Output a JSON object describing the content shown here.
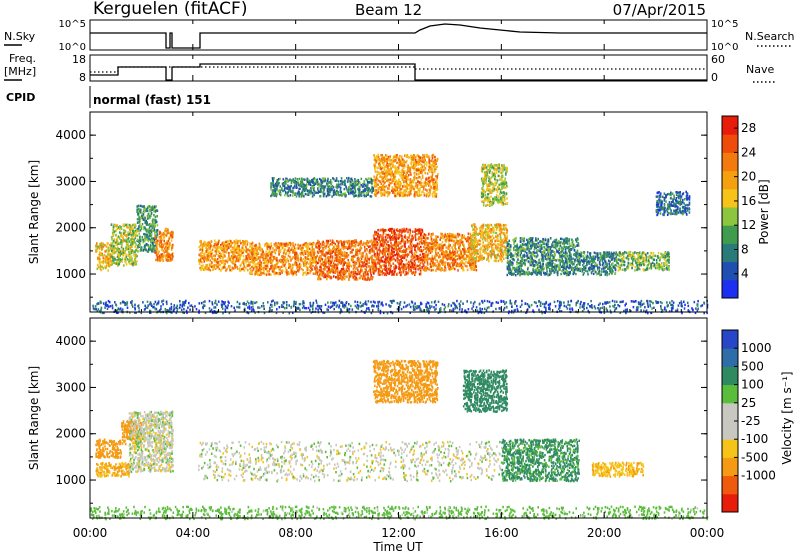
{
  "header": {
    "station": "Kerguelen (fitACF)",
    "beam": "Beam 12",
    "date": "07/Apr/2015"
  },
  "strips": {
    "nsky_label": "N.Sky",
    "nsearch_label": "N.Search",
    "freq_label_line1": "Freq.",
    "freq_label_line2": "[MHz]",
    "nave_label": "Nave",
    "cpid_label": "CPID",
    "cpid_value": "normal (fast) 151",
    "nsky_ticks": [
      "10^5",
      "10^0"
    ],
    "nsearch_ticks": [
      "10^5",
      "10^0"
    ],
    "freq_ticks": [
      "18",
      "8"
    ],
    "nave_ticks": [
      "60",
      "0"
    ]
  },
  "axes": {
    "ylabel": "Slant Range [km]",
    "xlabel": "Time UT",
    "y_ticks": [
      "1000",
      "2000",
      "3000",
      "4000"
    ],
    "x_ticks": [
      "00:00",
      "04:00",
      "08:00",
      "12:00",
      "16:00",
      "20:00",
      "00:00"
    ]
  },
  "power_colorbar": {
    "label": "Power [dB]",
    "ticks": [
      "4",
      "8",
      "12",
      "16",
      "20",
      "24",
      "28"
    ],
    "colors": [
      "#1d2ff0",
      "#1f4fb0",
      "#2a7a7a",
      "#3f9c4f",
      "#8cc63e",
      "#f6c318",
      "#f5a00f",
      "#f27a0e",
      "#ef4b0b",
      "#e81c0b"
    ]
  },
  "velocity_colorbar": {
    "label": "Velocity [m s⁻¹]",
    "ticks": [
      "1000",
      "500",
      "100",
      "25",
      "-25",
      "-100",
      "-500",
      "-1000"
    ],
    "colors": [
      "#2846c8",
      "#2e6ea8",
      "#2f8a62",
      "#5bbd3c",
      "#c8c8c0",
      "#c8c8c0",
      "#f6c318",
      "#f59a12",
      "#ef5a0c",
      "#e81c0b"
    ]
  },
  "chart_data": {
    "type": "heatmap",
    "x_range_hours": [
      0,
      24
    ],
    "y_range_km": [
      180,
      4500
    ],
    "series": [
      {
        "name": "Power",
        "scale_db": [
          0,
          30
        ],
        "blobs": [
          {
            "t": [
              0.2,
              0.8
            ],
            "r": [
              1100,
              1700
            ],
            "v": 18
          },
          {
            "t": [
              0.8,
              1.8
            ],
            "r": [
              1200,
              2100
            ],
            "v": 14
          },
          {
            "t": [
              1.8,
              2.6
            ],
            "r": [
              1500,
              2500
            ],
            "v": 10
          },
          {
            "t": [
              2.5,
              3.2
            ],
            "r": [
              1300,
              2000
            ],
            "v": 22
          },
          {
            "t": [
              4.2,
              6.2
            ],
            "r": [
              1100,
              1750
            ],
            "v": 20
          },
          {
            "t": [
              6.2,
              8.8
            ],
            "r": [
              1000,
              1700
            ],
            "v": 21
          },
          {
            "t": [
              8.8,
              11.0
            ],
            "r": [
              900,
              1750
            ],
            "v": 23
          },
          {
            "t": [
              11.0,
              13.0
            ],
            "r": [
              1000,
              2000
            ],
            "v": 25
          },
          {
            "t": [
              13.0,
              15.0
            ],
            "r": [
              1100,
              1900
            ],
            "v": 22
          },
          {
            "t": [
              14.8,
              16.2
            ],
            "r": [
              1300,
              2100
            ],
            "v": 18
          },
          {
            "t": [
              15.2,
              16.2
            ],
            "r": [
              2500,
              3400
            ],
            "v": 14
          },
          {
            "t": [
              11.0,
              13.5
            ],
            "r": [
              2700,
              3600
            ],
            "v": 20
          },
          {
            "t": [
              7.0,
              11.0
            ],
            "r": [
              2700,
              3100
            ],
            "v": 8
          },
          {
            "t": [
              16.2,
              19.0
            ],
            "r": [
              1000,
              1800
            ],
            "v": 9
          },
          {
            "t": [
              19.0,
              20.5
            ],
            "r": [
              1000,
              1500
            ],
            "v": 8
          },
          {
            "t": [
              20.5,
              22.5
            ],
            "r": [
              1100,
              1500
            ],
            "v": 12
          },
          {
            "t": [
              22.0,
              23.3
            ],
            "r": [
              2300,
              2800
            ],
            "v": 6
          },
          {
            "t": [
              0,
              24
            ],
            "r": [
              180,
              450
            ],
            "v": 5
          }
        ]
      },
      {
        "name": "Velocity",
        "scale_ms": [
          -1000,
          1000
        ],
        "blobs": [
          {
            "t": [
              0.2,
              1.2
            ],
            "r": [
              1500,
              1900
            ],
            "v": -300
          },
          {
            "t": [
              0.2,
              1.5
            ],
            "r": [
              1100,
              1400
            ],
            "v": -100
          },
          {
            "t": [
              1.2,
              2.0
            ],
            "r": [
              1800,
              2300
            ],
            "v": -400
          },
          {
            "t": [
              1.5,
              3.2
            ],
            "r": [
              1200,
              2500
            ],
            "v": 0
          },
          {
            "t": [
              4.2,
              16.0
            ],
            "r": [
              1000,
              1850
            ],
            "v": 0
          },
          {
            "t": [
              11.0,
              13.5
            ],
            "r": [
              2700,
              3600
            ],
            "v": -400
          },
          {
            "t": [
              14.5,
              16.2
            ],
            "r": [
              2500,
              3400
            ],
            "v": 150
          },
          {
            "t": [
              16.0,
              19.0
            ],
            "r": [
              1000,
              1900
            ],
            "v": 120
          },
          {
            "t": [
              19.5,
              21.5
            ],
            "r": [
              1100,
              1400
            ],
            "v": -80
          },
          {
            "t": [
              0,
              24
            ],
            "r": [
              180,
              450
            ],
            "v": 60
          }
        ]
      }
    ]
  }
}
